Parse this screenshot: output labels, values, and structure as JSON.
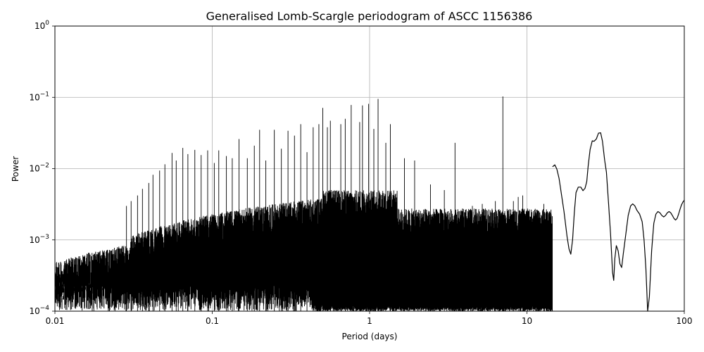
{
  "chart_data": {
    "type": "line",
    "title": "Generalised Lomb-Scargle periodogram of ASCC 1156386",
    "xlabel": "Period (days)",
    "ylabel": "Power",
    "x_scale": "log",
    "y_scale": "log",
    "xlim": [
      0.01,
      100
    ],
    "ylim": [
      0.0001,
      1
    ],
    "x_ticks": [
      {
        "value": 0.01,
        "label": "0.01"
      },
      {
        "value": 0.1,
        "label": "0.1"
      },
      {
        "value": 1,
        "label": "1"
      },
      {
        "value": 10,
        "label": "10"
      },
      {
        "value": 100,
        "label": "100"
      }
    ],
    "y_ticks": [
      {
        "value": 0.0001,
        "base": "10",
        "exp": "−4"
      },
      {
        "value": 0.001,
        "base": "10",
        "exp": "−3"
      },
      {
        "value": 0.01,
        "base": "10",
        "exp": "−2"
      },
      {
        "value": 0.1,
        "base": "10",
        "exp": "−1"
      },
      {
        "value": 1,
        "base": "10",
        "exp": "0"
      }
    ],
    "grid": true,
    "line_color": "#000000",
    "series": [
      {
        "x": [
          14.54,
          15.04,
          15.5,
          16.0,
          17.2,
          18.0,
          18.5,
          19.0,
          19.5,
          20.0,
          20.5,
          21.2,
          22.0,
          22.7,
          23.4,
          24.0,
          24.5,
          25.2,
          26.0,
          26.7,
          27.6,
          28.5,
          29.4,
          30.2,
          31.2,
          32.0,
          33.0,
          34.0,
          35.0,
          35.6,
          36.2,
          37.0,
          38.0,
          39.0,
          40.0,
          41.0,
          42.5,
          44.0,
          45.6,
          47.0,
          48.5,
          50.0,
          52.0,
          54.0,
          55.5,
          57.0,
          58.5,
          60.0,
          62.0,
          64.0,
          66.0,
          68.0,
          70.0,
          72.0,
          74.0,
          76.0,
          78.0,
          80.0,
          82.0,
          84.0,
          86.0,
          88.0,
          90.0,
          92.0,
          94.0,
          96.0,
          98.0,
          100.0
        ],
        "y": [
          0.0106,
          0.0113,
          0.0098,
          0.0073,
          0.0025,
          0.0011,
          0.00075,
          0.00063,
          0.001,
          0.0024,
          0.0046,
          0.0055,
          0.0055,
          0.0049,
          0.0053,
          0.0066,
          0.0109,
          0.0185,
          0.0245,
          0.0242,
          0.026,
          0.0315,
          0.0318,
          0.0242,
          0.013,
          0.0089,
          0.0033,
          0.0012,
          0.00035,
          0.00027,
          0.00055,
          0.00083,
          0.0007,
          0.00046,
          0.00041,
          0.00065,
          0.0012,
          0.0022,
          0.003,
          0.0032,
          0.003,
          0.0026,
          0.0023,
          0.0018,
          0.001,
          0.0004,
          0.0001,
          0.00016,
          0.0007,
          0.0017,
          0.0023,
          0.0025,
          0.0024,
          0.0022,
          0.0021,
          0.0022,
          0.0024,
          0.0025,
          0.0024,
          0.0022,
          0.002,
          0.0019,
          0.002,
          0.0023,
          0.0027,
          0.0031,
          0.0034,
          0.0036
        ]
      }
    ]
  }
}
